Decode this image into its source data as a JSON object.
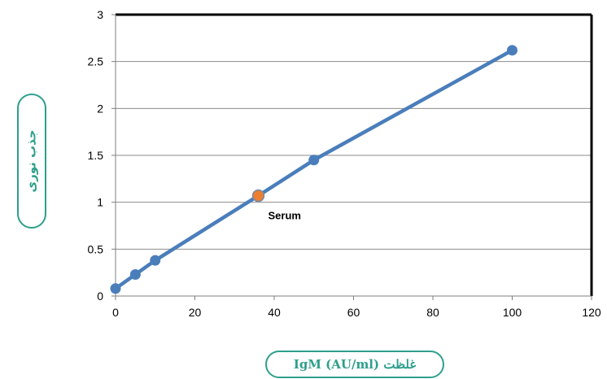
{
  "chart_data": {
    "type": "line",
    "xlabel": "غلظت (IgM (AU/ml",
    "ylabel": "جذب نوری",
    "xlim": [
      0,
      120
    ],
    "ylim": [
      0,
      3
    ],
    "x_ticks": [
      0,
      20,
      40,
      60,
      80,
      100,
      120
    ],
    "y_ticks": [
      0,
      0.5,
      1,
      1.5,
      2,
      2.5,
      3
    ],
    "x_tick_labels": [
      "0",
      "20",
      "40",
      "60",
      "80",
      "100",
      "120"
    ],
    "y_tick_labels": [
      "0",
      "0.5",
      "1",
      "1.5",
      "2",
      "2.5",
      "3"
    ],
    "grid": "horizontal",
    "series": [
      {
        "color": "#4a7ebb",
        "points": [
          {
            "x": 0,
            "y": 0.08
          },
          {
            "x": 5,
            "y": 0.23
          },
          {
            "x": 10,
            "y": 0.38
          },
          {
            "x": 36,
            "y": 1.07
          },
          {
            "x": 50,
            "y": 1.45
          },
          {
            "x": 100,
            "y": 2.62
          }
        ]
      }
    ],
    "annotations": [
      {
        "x": 36,
        "y": 1.07,
        "label": "Serum",
        "color": "#ed7d31"
      }
    ]
  }
}
